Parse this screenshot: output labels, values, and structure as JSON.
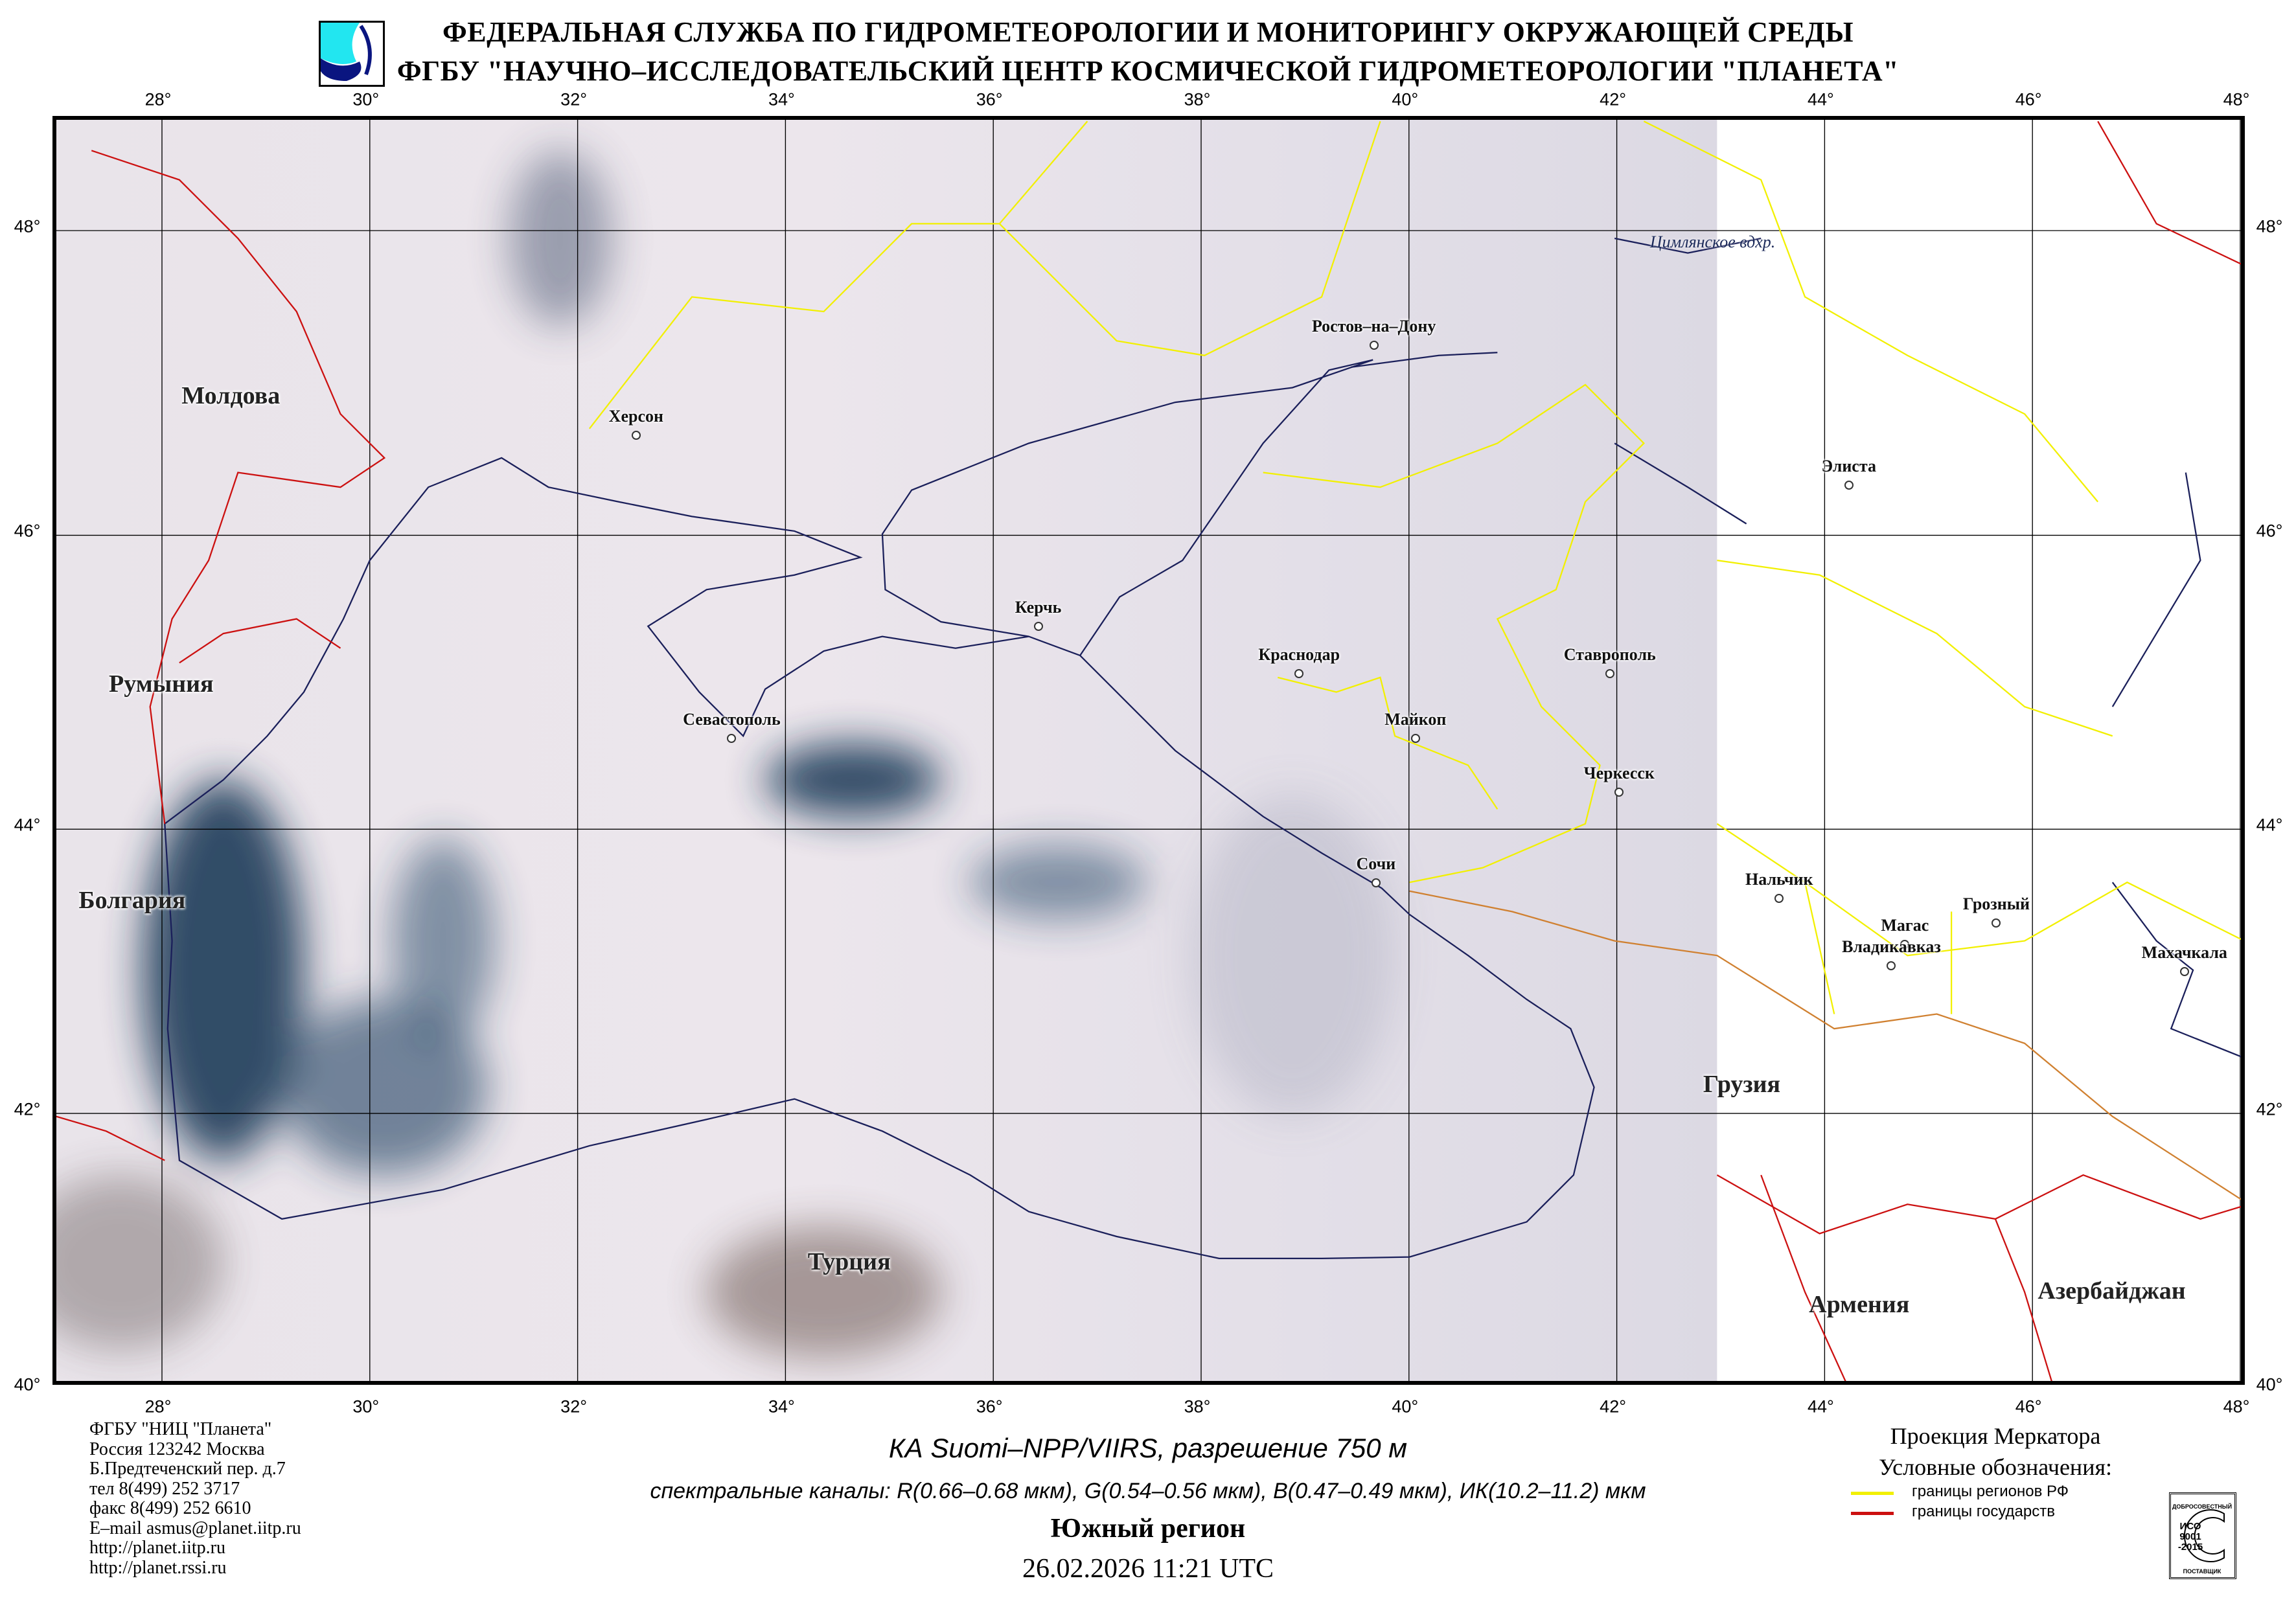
{
  "header": {
    "line1": "ФЕДЕРАЛЬНАЯ СЛУЖБА ПО ГИДРОМЕТЕОРОЛОГИИ И МОНИТОРИНГУ ОКРУЖАЮЩЕЙ СРЕДЫ",
    "line2": "ФГБУ \"НАУЧНО–ИССЛЕДОВАТЕЛЬСКИЙ ЦЕНТР КОСМИЧЕСКОЙ ГИДРОМЕТЕОРОЛОГИИ \"ПЛАНЕТА\"",
    "logo_icon": "planeta-logo-icon"
  },
  "map": {
    "projection": "Mercator",
    "lon_ticks": [
      "28°",
      "30°",
      "32°",
      "34°",
      "36°",
      "38°",
      "40°",
      "42°",
      "44°",
      "46°",
      "48°"
    ],
    "lat_ticks": [
      "48°",
      "46°",
      "44°",
      "42°",
      "40°"
    ],
    "lon_values": [
      28,
      30,
      32,
      34,
      36,
      38,
      40,
      42,
      44,
      46,
      48
    ],
    "lat_values": [
      48,
      46,
      44,
      42,
      40
    ],
    "colors": {
      "region_border": "#f2f000",
      "state_border": "#cc1010",
      "coastline": "#1a1f5a",
      "grid": "#000000"
    },
    "cities": [
      {
        "name": "Херсон",
        "lon": 32.6,
        "lat": 46.64
      },
      {
        "name": "Ростов–на–Дону",
        "lon": 39.7,
        "lat": 47.23
      },
      {
        "name": "Элиста",
        "lon": 44.27,
        "lat": 46.31
      },
      {
        "name": "Керчь",
        "lon": 36.47,
        "lat": 45.36
      },
      {
        "name": "Краснодар",
        "lon": 38.98,
        "lat": 45.04
      },
      {
        "name": "Ставрополь",
        "lon": 41.97,
        "lat": 45.04
      },
      {
        "name": "Майкоп",
        "lon": 40.1,
        "lat": 44.6
      },
      {
        "name": "Черкесск",
        "lon": 42.06,
        "lat": 44.23
      },
      {
        "name": "Севастополь",
        "lon": 33.52,
        "lat": 44.6
      },
      {
        "name": "Сочи",
        "lon": 39.72,
        "lat": 43.6
      },
      {
        "name": "Нальчик",
        "lon": 43.6,
        "lat": 43.49
      },
      {
        "name": "Магас",
        "lon": 44.81,
        "lat": 43.17
      },
      {
        "name": "Грозный",
        "lon": 45.69,
        "lat": 43.32
      },
      {
        "name": "Владикавказ",
        "lon": 44.68,
        "lat": 43.02
      },
      {
        "name": "Махачкала",
        "lon": 47.5,
        "lat": 42.98
      }
    ],
    "countries": [
      {
        "name": "Молдова",
        "lon": 28.7,
        "lat": 46.9
      },
      {
        "name": "Румыния",
        "lon": 28.03,
        "lat": 44.97
      },
      {
        "name": "Болгария",
        "lon": 27.75,
        "lat": 43.48
      },
      {
        "name": "Турция",
        "lon": 34.65,
        "lat": 40.9
      },
      {
        "name": "Грузия",
        "lon": 43.24,
        "lat": 42.18
      },
      {
        "name": "Армения",
        "lon": 44.37,
        "lat": 40.59
      },
      {
        "name": "Азербайджан",
        "lon": 46.8,
        "lat": 40.69
      }
    ],
    "water": [
      {
        "name": "Цимлянское вдхр.",
        "lon": 42.96,
        "lat": 47.9
      }
    ]
  },
  "footer": {
    "address": [
      "ФГБУ \"НИЦ \"Планета\"",
      "Россия 123242 Москва",
      "Б.Предтеченский пер. д.7",
      "тел 8(499) 252 3717",
      "факс 8(499) 252 6610",
      "E–mail asmus@planet.iitp.ru",
      "http://planet.iitp.ru",
      "http://planet.rssi.ru"
    ],
    "satellite": "КА Suomi–NPP/VIIRS, разрешение 750 м",
    "channels": "спектральные каналы: R(0.66–0.68 мкм), G(0.54–0.56 мкм), B(0.47–0.49 мкм), ИК(10.2–11.2) мкм",
    "region": "Южный регион",
    "datetime": "26.02.2026 11:21 UTC",
    "projection_label": "Проекция Меркатора",
    "legend_title": "Условные обозначения:",
    "legend": [
      {
        "label": "границы регионов РФ",
        "color": "#f2f000"
      },
      {
        "label": "границы государств",
        "color": "#cc1010"
      }
    ],
    "iso_badge": {
      "top": "ДОБРОСОВЕСТНЫЙ",
      "center": [
        "ИСО",
        "9001",
        "-2015"
      ],
      "bottom": "ПОСТАВЩИК"
    }
  }
}
